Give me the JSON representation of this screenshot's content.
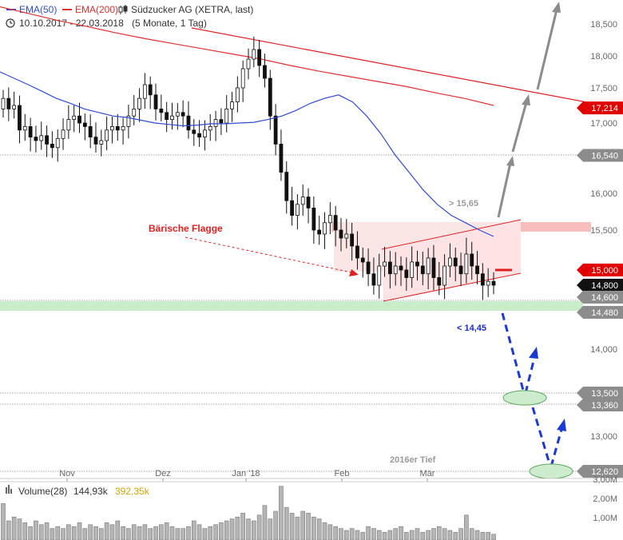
{
  "header": {
    "legend_ema50": "EMA(50)",
    "legend_ema200": "EMA(200)",
    "instrument": "Südzucker AG (XETRA, last)",
    "date_range": "10.10.2017 - 22.03.2018",
    "period": "(5 Monate, 1 Tag)"
  },
  "colors": {
    "ema50": "#2f4bd6",
    "ema200": "#e03030",
    "candle": "#111111",
    "support_zone": "#c9ecc9",
    "resistance_zone": "#f7b3b3",
    "flag": "#fbe3e3",
    "arrow_up": "#8c8c8c",
    "arrow_down": "#1a3ad6",
    "annotation": "#e02020"
  },
  "chart_data": {
    "type": "candlestick",
    "y_axis_ticks": [
      {
        "value": 18500,
        "label": "18,500"
      },
      {
        "value": 18000,
        "label": "18,000"
      },
      {
        "value": 17500,
        "label": "17,500"
      },
      {
        "value": 17000,
        "label": "17,000"
      },
      {
        "value": 16000,
        "label": "16,000"
      },
      {
        "value": 15500,
        "label": "15,500"
      },
      {
        "value": 14000,
        "label": "14,000"
      },
      {
        "value": 13000,
        "label": "13,000"
      }
    ],
    "x_axis_ticks": [
      "Nov",
      "Dez",
      "Jan '18",
      "Feb",
      "Mär"
    ],
    "price_markers": [
      {
        "value": 17214,
        "label": "17,214",
        "style": "red"
      },
      {
        "value": 16540,
        "label": "16,540",
        "style": "gray"
      },
      {
        "value": 15000,
        "label": "15,000",
        "style": "red"
      },
      {
        "value": 14800,
        "label": "14,800",
        "style": "black"
      },
      {
        "value": 14600,
        "label": "14,600",
        "style": "gray"
      },
      {
        "value": 14480,
        "label": "14,480",
        "style": "gray"
      },
      {
        "value": 13500,
        "label": "13,500",
        "style": "gray"
      },
      {
        "value": 13360,
        "label": "13,360",
        "style": "gray"
      },
      {
        "value": 12620,
        "label": "12,620",
        "style": "gray"
      }
    ],
    "annotations": {
      "flag_label": "Bärische Flagge",
      "above_label": "> 15,65",
      "below_label": "< 14,45",
      "low_2016_label": "2016er Tief"
    },
    "closes": [
      17350,
      17200,
      17250,
      16900,
      16950,
      16800,
      16750,
      16820,
      16700,
      16650,
      16780,
      16900,
      17050,
      17100,
      17000,
      16950,
      16800,
      16700,
      16750,
      16900,
      16950,
      16900,
      16950,
      17100,
      17200,
      17350,
      17550,
      17400,
      17200,
      17150,
      17050,
      17100,
      17150,
      17100,
      16900,
      16850,
      16800,
      16900,
      16950,
      17050,
      17000,
      17200,
      17300,
      17500,
      17800,
      17950,
      18100,
      17850,
      17650,
      17100,
      16700,
      16300,
      15900,
      15700,
      15850,
      15950,
      15800,
      15500,
      15450,
      15600,
      15700,
      15500,
      15400,
      15450,
      15300,
      15150,
      15100,
      14950,
      14800,
      15050,
      15100,
      14950,
      15050,
      15000,
      14900,
      15100,
      15050,
      14950,
      15150,
      14900,
      14800,
      15050,
      15150,
      15050,
      14950,
      15200,
      15050,
      14950,
      14800,
      14850,
      14800
    ],
    "ema50": [
      17750,
      17650,
      17550,
      17450,
      17350,
      17280,
      17200,
      17150,
      17100,
      17080,
      17040,
      17000,
      16980,
      16960,
      16970,
      16990,
      16990,
      17000,
      17010,
      17050,
      17100,
      17180,
      17280,
      17350,
      17400,
      17300,
      17100,
      16850,
      16550,
      16300,
      16050,
      15850,
      15700,
      15600,
      15500,
      15420
    ],
    "ema200": [
      18750,
      18650,
      18550,
      18460,
      18360,
      18270,
      18190,
      18110,
      18030,
      17950,
      17850,
      17760,
      17680,
      17600,
      17520,
      17430,
      17350,
      17250
    ]
  },
  "volume": {
    "label": "Volume(28)",
    "value": "144,93k",
    "ma_value": "392,35k",
    "ticks": [
      "3,00M",
      "2,00M",
      "1,00M"
    ],
    "bars": [
      0.95,
      0.5,
      0.6,
      0.55,
      0.45,
      0.35,
      0.5,
      0.4,
      0.45,
      0.3,
      0.35,
      0.3,
      0.4,
      0.35,
      0.45,
      0.3,
      0.4,
      0.35,
      0.3,
      0.45,
      0.4,
      0.5,
      0.35,
      0.3,
      0.4,
      0.35,
      0.4,
      0.3,
      0.35,
      0.4,
      0.45,
      0.35,
      0.3,
      0.3,
      0.35,
      0.5,
      0.4,
      0.3,
      0.35,
      0.4,
      0.45,
      0.5,
      0.55,
      0.6,
      0.7,
      0.55,
      0.5,
      0.65,
      0.9,
      0.55,
      0.75,
      1.4,
      0.85,
      0.7,
      0.6,
      0.75,
      0.7,
      0.6,
      0.55,
      0.45,
      0.4,
      0.35,
      0.3,
      0.25,
      0.3,
      0.25,
      0.2,
      0.35,
      0.3,
      0.25,
      0.2,
      0.25,
      0.3,
      0.35,
      0.2,
      0.25,
      0.3,
      0.2,
      0.25,
      0.3,
      0.35,
      0.3,
      0.25,
      0.2,
      0.3,
      0.65,
      0.3,
      0.25,
      0.2,
      0.2,
      0.15
    ]
  }
}
